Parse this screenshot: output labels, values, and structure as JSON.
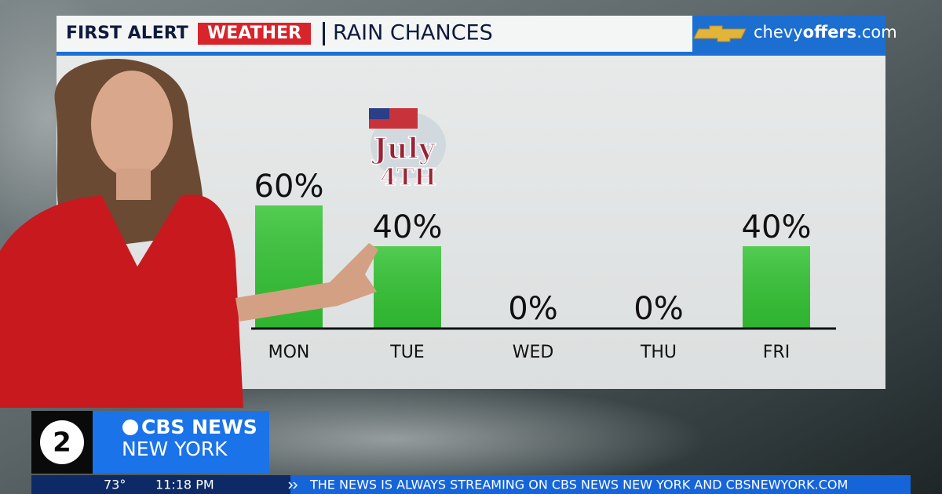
{
  "header": {
    "brand": "FIRST ALERT",
    "brand_badge": "WEATHER"
  },
  "sponsor": {
    "parts": [
      "chevy",
      "offers",
      ".com"
    ]
  },
  "chart_data": {
    "type": "bar",
    "title": "RAIN CHANCES",
    "categories": [
      "MON",
      "TUE",
      "WED",
      "THU",
      "FRI"
    ],
    "values": [
      60,
      40,
      0,
      0,
      40
    ],
    "value_labels": [
      "60%",
      "40%",
      "0%",
      "0%",
      "40%"
    ],
    "color": "#34c434",
    "annotations": [
      "July",
      "4TH"
    ]
  },
  "station": {
    "channel": "2",
    "network": "CBS NEWS",
    "city": "NEW YORK"
  },
  "ticker": {
    "temperature": "73°",
    "time": "11:18 PM",
    "headline": "THE NEWS IS ALWAYS STREAMING ON CBS NEWS NEW YORK AND CBSNEWYORK.COM"
  }
}
